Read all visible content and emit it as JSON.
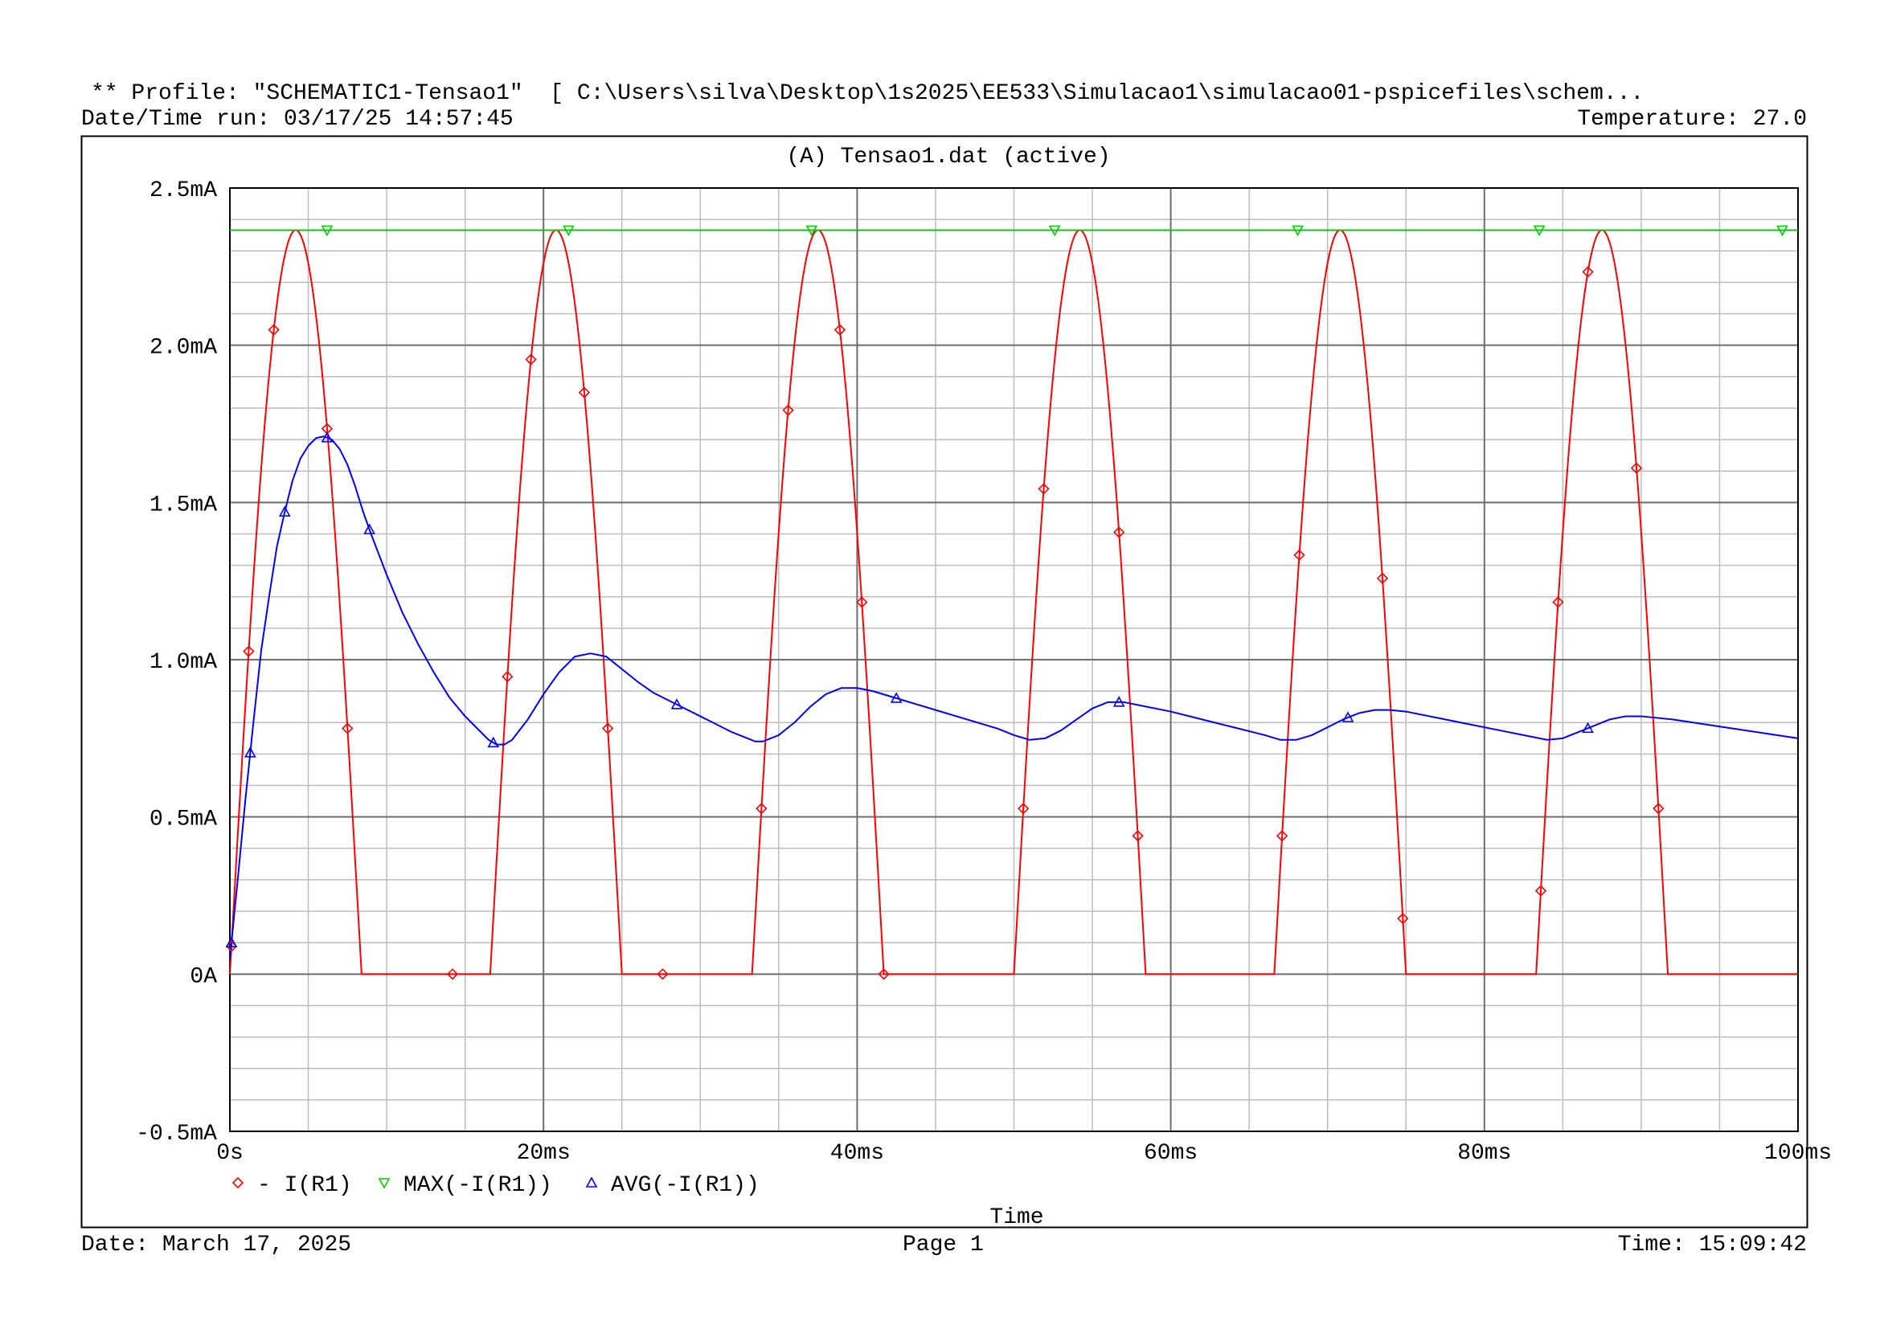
{
  "header": {
    "profile_line": "** Profile: \"SCHEMATIC1-Tensao1\"  [ C:\\Users\\silva\\Desktop\\1s2025\\EE533\\Simulacao1\\simulacao01-pspicefiles\\schem...",
    "datetime_run": "Date/Time run: 03/17/25 14:57:45",
    "temperature": "Temperature: 27.0"
  },
  "footer": {
    "date": "Date: March 17, 2025",
    "page": "Page 1",
    "time": "Time: 15:09:42"
  },
  "chart_data": {
    "type": "line",
    "title": "(A) Tensao1.dat (active)",
    "xlabel": "Time",
    "ylabel": "",
    "x_unit": "ms",
    "y_unit": "mA",
    "xlim": [
      0,
      100
    ],
    "ylim": [
      -0.5,
      2.5
    ],
    "x_major_ticks": [
      0,
      20,
      40,
      60,
      80,
      100
    ],
    "x_tick_labels": [
      "0s",
      "20ms",
      "40ms",
      "60ms",
      "80ms",
      "100ms"
    ],
    "y_major_ticks": [
      -0.5,
      0,
      0.5,
      1.0,
      1.5,
      2.0,
      2.5
    ],
    "y_tick_labels": [
      "-0.5mA",
      "0A",
      "0.5mA",
      "1.0mA",
      "1.5mA",
      "2.0mA",
      "2.5mA"
    ],
    "x_minor_step": 5,
    "y_minor_step": 0.1,
    "grid": true,
    "legend_position": "bottom-left",
    "series": [
      {
        "name": "- I(R1)",
        "color": "#ff0000",
        "marker": "diamond",
        "pulses": {
          "peak": 2.366,
          "half_width": 4.2,
          "centers": [
            4.2,
            20.8,
            37.5,
            54.2,
            70.8,
            87.5
          ]
        },
        "markers_x": [
          0.1,
          1.2,
          2.8,
          6.2,
          7.5,
          14.2,
          17.7,
          19.2,
          22.6,
          24.1,
          27.6,
          33.9,
          35.6,
          38.9,
          40.3,
          41.7,
          50.6,
          51.9,
          56.7,
          57.9,
          67.1,
          68.2,
          73.5,
          74.8,
          83.6,
          84.7,
          86.6,
          89.7,
          91.1
        ]
      },
      {
        "name": "MAX(-I(R1))",
        "color": "#00d000",
        "marker": "triangle-down",
        "value": 2.366,
        "markers_x": [
          6.2,
          21.6,
          37.1,
          52.6,
          68.1,
          83.5,
          99.0
        ]
      },
      {
        "name": "AVG(-I(R1))",
        "color": "#0000ff",
        "marker": "triangle-up",
        "x": [
          0,
          0.5,
          1,
          1.5,
          2,
          2.5,
          3,
          3.5,
          4,
          4.5,
          5,
          5.5,
          6,
          6.5,
          7,
          7.5,
          8,
          8.5,
          9,
          10,
          11,
          12,
          13,
          14,
          15,
          16,
          16.5,
          17,
          17.5,
          18,
          19,
          20,
          21,
          22,
          23,
          24,
          25,
          26,
          27,
          28,
          29,
          30,
          31,
          32,
          33,
          33.5,
          34,
          35,
          36,
          37,
          38,
          39,
          40,
          41,
          42,
          43,
          45,
          47,
          49,
          50,
          51,
          52,
          53,
          54,
          55,
          56,
          57,
          58,
          60,
          62,
          64,
          66,
          67,
          68,
          69,
          70,
          71,
          72,
          73,
          74,
          75,
          77,
          79,
          81,
          83,
          84,
          85,
          86,
          87,
          88,
          89,
          90,
          92,
          94,
          96,
          98,
          100
        ],
        "y": [
          0.05,
          0.3,
          0.56,
          0.8,
          1.03,
          1.2,
          1.36,
          1.47,
          1.57,
          1.64,
          1.68,
          1.705,
          1.71,
          1.7,
          1.67,
          1.62,
          1.55,
          1.47,
          1.4,
          1.27,
          1.15,
          1.05,
          0.96,
          0.88,
          0.82,
          0.77,
          0.745,
          0.73,
          0.73,
          0.745,
          0.81,
          0.89,
          0.96,
          1.01,
          1.02,
          1.01,
          0.97,
          0.93,
          0.895,
          0.87,
          0.845,
          0.82,
          0.795,
          0.77,
          0.75,
          0.74,
          0.74,
          0.76,
          0.8,
          0.85,
          0.89,
          0.91,
          0.91,
          0.9,
          0.885,
          0.87,
          0.84,
          0.81,
          0.78,
          0.76,
          0.745,
          0.75,
          0.775,
          0.81,
          0.845,
          0.865,
          0.865,
          0.855,
          0.835,
          0.81,
          0.785,
          0.76,
          0.745,
          0.745,
          0.76,
          0.785,
          0.81,
          0.83,
          0.84,
          0.84,
          0.835,
          0.815,
          0.795,
          0.775,
          0.755,
          0.745,
          0.75,
          0.77,
          0.79,
          0.81,
          0.82,
          0.82,
          0.81,
          0.795,
          0.78,
          0.765,
          0.75
        ],
        "markers_x": [
          0.1,
          1.3,
          3.5,
          6.2,
          8.9,
          16.8,
          28.5,
          42.5,
          56.7,
          71.3,
          86.6
        ]
      }
    ]
  }
}
